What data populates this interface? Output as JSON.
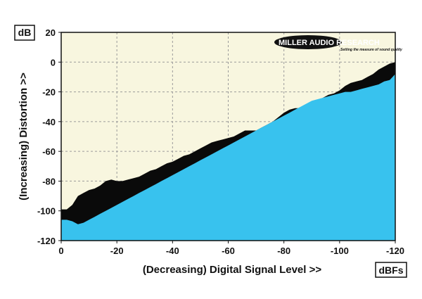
{
  "logo": {
    "name": "MILLER AUDIO RESEARCH",
    "tagline": "Setting the measure of sound quality"
  },
  "colors": {
    "plot_background": "#f8f6df",
    "distortion_fill": "#0a0a0a",
    "signal_fill": "#38c2ee",
    "grid": "#9a9a9a"
  },
  "chart_data": {
    "type": "area",
    "title": "",
    "xlabel": "(Decreasing) Digital Signal Level >>",
    "ylabel": "(Increasing) Distortion >>",
    "x_unit": "dBFs",
    "y_unit": "dB",
    "xlim": [
      0,
      -120
    ],
    "ylim": [
      -120,
      20
    ],
    "x_ticks": [
      0,
      -20,
      -40,
      -60,
      -80,
      -100,
      -120
    ],
    "y_ticks": [
      20,
      0,
      -20,
      -40,
      -60,
      -80,
      -100,
      -120
    ],
    "grid": true,
    "legend": "none",
    "series": [
      {
        "role": "upper-boundary",
        "color": "#0a0a0a",
        "x": [
          0,
          -2,
          -4,
          -6,
          -8,
          -10,
          -12,
          -14,
          -16,
          -18,
          -20,
          -22,
          -24,
          -26,
          -28,
          -30,
          -32,
          -34,
          -36,
          -38,
          -40,
          -42,
          -44,
          -46,
          -48,
          -50,
          -52,
          -54,
          -56,
          -58,
          -60,
          -62,
          -64,
          -66,
          -68,
          -70,
          -72,
          -74,
          -76,
          -78,
          -80,
          -82,
          -84,
          -86,
          -88,
          -90,
          -92,
          -94,
          -96,
          -98,
          -100,
          -102,
          -104,
          -106,
          -108,
          -110,
          -112,
          -114,
          -116,
          -118,
          -120
        ],
        "y": [
          -99,
          -99,
          -96,
          -90,
          -88,
          -86,
          -85,
          -83,
          -80,
          -79,
          -80,
          -80,
          -79,
          -78,
          -77,
          -75,
          -73,
          -72,
          -70,
          -68,
          -67,
          -65,
          -63,
          -62,
          -60,
          -58,
          -56,
          -54,
          -53,
          -52,
          -51,
          -50,
          -48,
          -46,
          -46,
          -46,
          -44,
          -42,
          -40,
          -37,
          -34,
          -32,
          -31,
          -31,
          -30,
          -28,
          -26,
          -24,
          -22,
          -21,
          -19,
          -16,
          -14,
          -13,
          -12,
          -10,
          -8,
          -5,
          -3,
          -1,
          0
        ]
      },
      {
        "role": "lower-boundary",
        "color": "#38c2ee",
        "x": [
          0,
          -2,
          -4,
          -6,
          -8,
          -10,
          -12,
          -14,
          -16,
          -18,
          -20,
          -22,
          -24,
          -26,
          -28,
          -30,
          -32,
          -34,
          -36,
          -38,
          -40,
          -42,
          -44,
          -46,
          -48,
          -50,
          -52,
          -54,
          -56,
          -58,
          -60,
          -62,
          -64,
          -66,
          -68,
          -70,
          -72,
          -74,
          -76,
          -78,
          -80,
          -82,
          -84,
          -86,
          -88,
          -90,
          -92,
          -94,
          -96,
          -98,
          -100,
          -102,
          -104,
          -106,
          -108,
          -110,
          -112,
          -114,
          -116,
          -118,
          -120
        ],
        "y": [
          -106,
          -106,
          -107,
          -109,
          -108,
          -106,
          -104,
          -102,
          -100,
          -98,
          -96,
          -94,
          -92,
          -90,
          -88,
          -86,
          -84,
          -82,
          -80,
          -78,
          -76,
          -74,
          -72,
          -70,
          -68,
          -66,
          -64,
          -62,
          -60,
          -58,
          -56,
          -54,
          -52,
          -50,
          -48,
          -46,
          -44,
          -42,
          -40,
          -38,
          -36,
          -34,
          -32,
          -30,
          -28,
          -26,
          -25,
          -24,
          -23,
          -22,
          -21,
          -20,
          -20,
          -19,
          -18,
          -17,
          -16,
          -15,
          -13,
          -12,
          -8
        ]
      }
    ]
  }
}
